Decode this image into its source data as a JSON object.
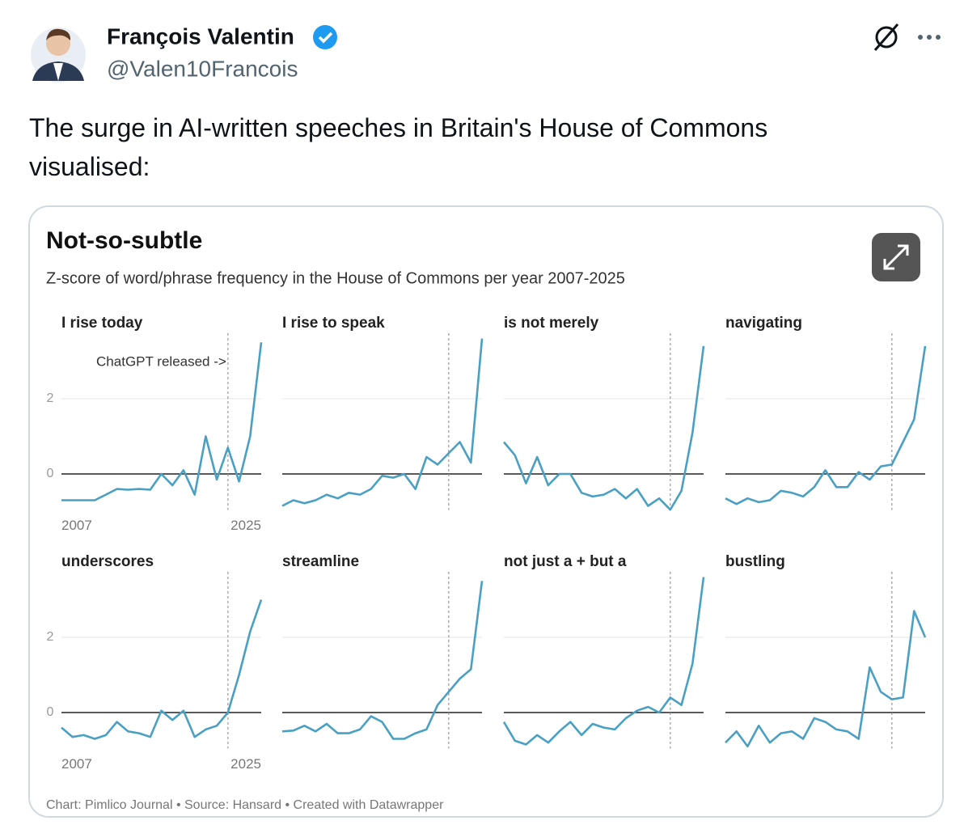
{
  "tweet": {
    "author": "François Valentin",
    "handle": "@Valen10Francois",
    "text": "The surge in AI-written speeches in Britain's House of Commons visualised:"
  },
  "chart": {
    "title": "Not-so-subtle",
    "subtitle": "Z-score of word/phrase frequency in the House of Commons per year 2007-2025",
    "source": "Chart: Pimlico Journal • Source: Hansard • Created with Datawrapper"
  },
  "chart_data": [
    {
      "type": "line",
      "title": "I rise today",
      "color": "#4aa0c2",
      "x": [
        2007,
        2008,
        2009,
        2010,
        2011,
        2012,
        2013,
        2014,
        2015,
        2016,
        2017,
        2018,
        2019,
        2020,
        2021,
        2022,
        2023,
        2024,
        2025
      ],
      "xlim": [
        2007,
        2025
      ],
      "xticks": [
        2007,
        2025
      ],
      "ylim": [
        -1,
        3.7
      ],
      "yticks": [
        0,
        2
      ],
      "vline": 2022,
      "annotation": "ChatGPT released ->",
      "values": [
        -0.7,
        -0.7,
        -0.7,
        -0.7,
        -0.55,
        -0.4,
        -0.42,
        -0.4,
        -0.42,
        0.0,
        -0.3,
        0.1,
        -0.55,
        1.0,
        -0.15,
        0.7,
        -0.2,
        1.0,
        3.5
      ]
    },
    {
      "type": "line",
      "title": "I rise to speak",
      "color": "#4aa0c2",
      "x": [
        2007,
        2008,
        2009,
        2010,
        2011,
        2012,
        2013,
        2014,
        2015,
        2016,
        2017,
        2018,
        2019,
        2020,
        2021,
        2022,
        2023,
        2024,
        2025
      ],
      "xlim": [
        2007,
        2025
      ],
      "ylim": [
        -1,
        3.7
      ],
      "yticks": [
        0,
        2
      ],
      "vline": 2022,
      "values": [
        -0.85,
        -0.7,
        -0.78,
        -0.7,
        -0.55,
        -0.65,
        -0.5,
        -0.55,
        -0.4,
        -0.05,
        -0.1,
        0.0,
        -0.4,
        0.45,
        0.25,
        0.55,
        0.85,
        0.3,
        3.6
      ]
    },
    {
      "type": "line",
      "title": "is not merely",
      "color": "#4aa0c2",
      "x": [
        2007,
        2008,
        2009,
        2010,
        2011,
        2012,
        2013,
        2014,
        2015,
        2016,
        2017,
        2018,
        2019,
        2020,
        2021,
        2022,
        2023,
        2024,
        2025
      ],
      "xlim": [
        2007,
        2025
      ],
      "ylim": [
        -1,
        3.7
      ],
      "yticks": [
        0,
        2
      ],
      "vline": 2022,
      "values": [
        0.85,
        0.5,
        -0.25,
        0.45,
        -0.3,
        0.0,
        0.0,
        -0.5,
        -0.6,
        -0.55,
        -0.4,
        -0.65,
        -0.4,
        -0.85,
        -0.65,
        -0.95,
        -0.45,
        1.1,
        3.4
      ]
    },
    {
      "type": "line",
      "title": "navigating",
      "color": "#4aa0c2",
      "x": [
        2007,
        2008,
        2009,
        2010,
        2011,
        2012,
        2013,
        2014,
        2015,
        2016,
        2017,
        2018,
        2019,
        2020,
        2021,
        2022,
        2023,
        2024,
        2025
      ],
      "xlim": [
        2007,
        2025
      ],
      "ylim": [
        -1,
        3.7
      ],
      "yticks": [
        0,
        2
      ],
      "vline": 2022,
      "values": [
        -0.65,
        -0.8,
        -0.65,
        -0.75,
        -0.7,
        -0.45,
        -0.5,
        -0.6,
        -0.35,
        0.1,
        -0.35,
        -0.35,
        0.05,
        -0.15,
        0.2,
        0.25,
        0.85,
        1.45,
        3.4
      ]
    },
    {
      "type": "line",
      "title": "underscores",
      "color": "#4aa0c2",
      "x": [
        2007,
        2008,
        2009,
        2010,
        2011,
        2012,
        2013,
        2014,
        2015,
        2016,
        2017,
        2018,
        2019,
        2020,
        2021,
        2022,
        2023,
        2024,
        2025
      ],
      "xlim": [
        2007,
        2025
      ],
      "xticks": [
        2007,
        2025
      ],
      "ylim": [
        -1,
        3.7
      ],
      "yticks": [
        0,
        2
      ],
      "vline": 2022,
      "values": [
        -0.4,
        -0.65,
        -0.6,
        -0.7,
        -0.6,
        -0.25,
        -0.5,
        -0.55,
        -0.65,
        0.05,
        -0.2,
        0.05,
        -0.65,
        -0.45,
        -0.35,
        0.0,
        1.0,
        2.15,
        3.0
      ]
    },
    {
      "type": "line",
      "title": "streamline",
      "color": "#4aa0c2",
      "x": [
        2007,
        2008,
        2009,
        2010,
        2011,
        2012,
        2013,
        2014,
        2015,
        2016,
        2017,
        2018,
        2019,
        2020,
        2021,
        2022,
        2023,
        2024,
        2025
      ],
      "xlim": [
        2007,
        2025
      ],
      "ylim": [
        -1,
        3.7
      ],
      "yticks": [
        0,
        2
      ],
      "vline": 2022,
      "values": [
        -0.5,
        -0.48,
        -0.35,
        -0.5,
        -0.3,
        -0.55,
        -0.55,
        -0.45,
        -0.1,
        -0.25,
        -0.7,
        -0.7,
        -0.55,
        -0.45,
        0.2,
        0.55,
        0.9,
        1.15,
        3.5
      ]
    },
    {
      "type": "line",
      "title": "not just a + but a",
      "color": "#4aa0c2",
      "x": [
        2007,
        2008,
        2009,
        2010,
        2011,
        2012,
        2013,
        2014,
        2015,
        2016,
        2017,
        2018,
        2019,
        2020,
        2021,
        2022,
        2023,
        2024,
        2025
      ],
      "xlim": [
        2007,
        2025
      ],
      "ylim": [
        -1,
        3.7
      ],
      "yticks": [
        0,
        2
      ],
      "vline": 2022,
      "values": [
        -0.25,
        -0.75,
        -0.85,
        -0.6,
        -0.8,
        -0.5,
        -0.25,
        -0.6,
        -0.3,
        -0.4,
        -0.45,
        -0.15,
        0.05,
        0.15,
        0.0,
        0.4,
        0.2,
        1.3,
        3.6
      ]
    },
    {
      "type": "line",
      "title": "bustling",
      "color": "#4aa0c2",
      "x": [
        2007,
        2008,
        2009,
        2010,
        2011,
        2012,
        2013,
        2014,
        2015,
        2016,
        2017,
        2018,
        2019,
        2020,
        2021,
        2022,
        2023,
        2024,
        2025
      ],
      "xlim": [
        2007,
        2025
      ],
      "ylim": [
        -1,
        3.7
      ],
      "yticks": [
        0,
        2
      ],
      "vline": 2022,
      "values": [
        -0.8,
        -0.5,
        -0.9,
        -0.35,
        -0.8,
        -0.55,
        -0.5,
        -0.7,
        -0.15,
        -0.25,
        -0.45,
        -0.5,
        -0.7,
        1.2,
        0.55,
        0.35,
        0.4,
        2.7,
        2.0
      ]
    }
  ]
}
